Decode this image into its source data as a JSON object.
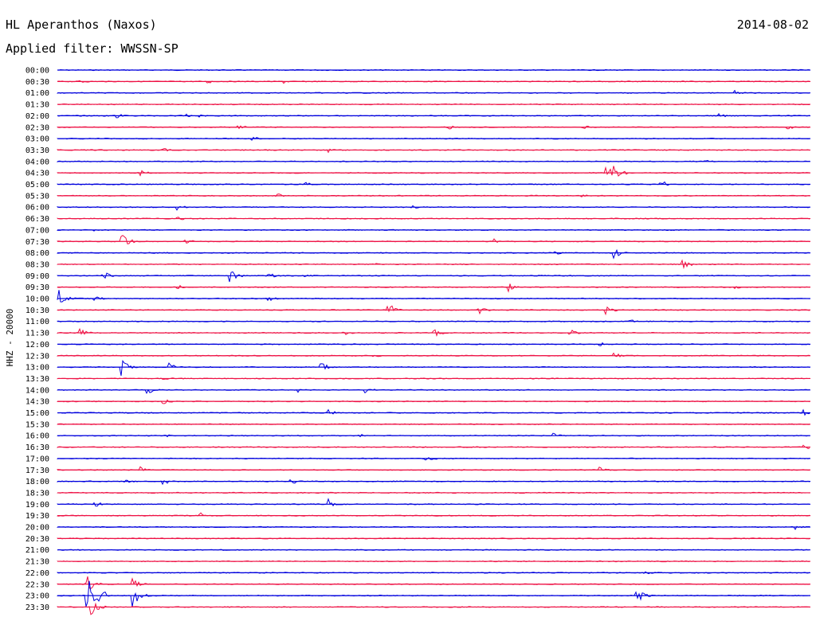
{
  "header": {
    "station": "HL Aperanthos (Naxos)",
    "date": "2014-08-02",
    "filter": "Applied filter: WWSSN-SP"
  },
  "chart_data": {
    "type": "helicorder",
    "channel_label": "HHZ - 20000",
    "colors": {
      "even": "#0000dd",
      "odd": "#ee1144"
    },
    "rows": [
      {
        "time": "00:00",
        "events": []
      },
      {
        "time": "00:30",
        "events": [
          {
            "x": 0.03,
            "amp": 3
          },
          {
            "x": 0.2,
            "amp": 3
          },
          {
            "x": 0.3,
            "amp": 3
          }
        ]
      },
      {
        "time": "01:00",
        "events": [
          {
            "x": 0.9,
            "amp": 3
          }
        ]
      },
      {
        "time": "01:30",
        "events": []
      },
      {
        "time": "02:00",
        "events": [
          {
            "x": 0.08,
            "amp": 3
          },
          {
            "x": 0.17,
            "amp": 3
          },
          {
            "x": 0.19,
            "amp": 2
          },
          {
            "x": 0.88,
            "amp": 3
          }
        ]
      },
      {
        "time": "02:30",
        "events": [
          {
            "x": 0.24,
            "amp": 4
          },
          {
            "x": 0.52,
            "amp": 3
          },
          {
            "x": 0.7,
            "amp": 3
          },
          {
            "x": 0.97,
            "amp": 3
          }
        ]
      },
      {
        "time": "03:00",
        "events": [
          {
            "x": 0.26,
            "amp": 3
          }
        ]
      },
      {
        "time": "03:30",
        "events": [
          {
            "x": 0.14,
            "amp": 3
          },
          {
            "x": 0.36,
            "amp": 3
          }
        ]
      },
      {
        "time": "04:00",
        "events": [
          {
            "x": 0.86,
            "amp": 3
          }
        ]
      },
      {
        "time": "04:30",
        "events": [
          {
            "x": 0.11,
            "amp": 4
          },
          {
            "x": 0.73,
            "amp": 9
          },
          {
            "x": 0.74,
            "amp": 15
          }
        ]
      },
      {
        "time": "05:00",
        "events": [
          {
            "x": 0.8,
            "amp": 7
          },
          {
            "x": 0.33,
            "amp": 3
          }
        ]
      },
      {
        "time": "05:30",
        "events": [
          {
            "x": 0.29,
            "amp": 4
          },
          {
            "x": 0.69,
            "amp": 5
          }
        ]
      },
      {
        "time": "06:00",
        "events": [
          {
            "x": 0.16,
            "amp": 4
          },
          {
            "x": 0.47,
            "amp": 3
          }
        ]
      },
      {
        "time": "06:30",
        "events": [
          {
            "x": 0.16,
            "amp": 3
          }
        ]
      },
      {
        "time": "07:00",
        "events": [
          {
            "x": 0.05,
            "amp": 3
          }
        ]
      },
      {
        "time": "07:30",
        "events": [
          {
            "x": 0.085,
            "amp": 13
          },
          {
            "x": 0.17,
            "amp": 4
          },
          {
            "x": 0.58,
            "amp": 4
          }
        ]
      },
      {
        "time": "08:00",
        "events": [
          {
            "x": 0.74,
            "amp": 7
          },
          {
            "x": 0.66,
            "amp": 3
          }
        ]
      },
      {
        "time": "08:30",
        "events": [
          {
            "x": 0.83,
            "amp": 7
          },
          {
            "x": 0.42,
            "amp": 3
          }
        ]
      },
      {
        "time": "09:00",
        "events": [
          {
            "x": 0.06,
            "amp": 9
          },
          {
            "x": 0.23,
            "amp": 9
          },
          {
            "x": 0.28,
            "amp": 4
          },
          {
            "x": 0.33,
            "amp": 3
          }
        ]
      },
      {
        "time": "09:30",
        "events": [
          {
            "x": 0.6,
            "amp": 6
          },
          {
            "x": 0.16,
            "amp": 3
          },
          {
            "x": 0.9,
            "amp": 3
          }
        ]
      },
      {
        "time": "10:00",
        "events": [
          {
            "x": 0.0,
            "amp": 15
          },
          {
            "x": 0.05,
            "amp": 4
          },
          {
            "x": 0.28,
            "amp": 4
          }
        ]
      },
      {
        "time": "10:30",
        "events": [
          {
            "x": 0.44,
            "amp": 9
          },
          {
            "x": 0.56,
            "amp": 5
          },
          {
            "x": 0.73,
            "amp": 6
          }
        ]
      },
      {
        "time": "11:00",
        "events": [
          {
            "x": 0.76,
            "amp": 3
          }
        ]
      },
      {
        "time": "11:30",
        "events": [
          {
            "x": 0.03,
            "amp": 6
          },
          {
            "x": 0.38,
            "amp": 4
          },
          {
            "x": 0.5,
            "amp": 6
          },
          {
            "x": 0.68,
            "amp": 6
          }
        ]
      },
      {
        "time": "12:00",
        "events": [
          {
            "x": 0.72,
            "amp": 3
          }
        ]
      },
      {
        "time": "12:30",
        "events": [
          {
            "x": 0.42,
            "amp": 3
          },
          {
            "x": 0.74,
            "amp": 4
          }
        ]
      },
      {
        "time": "13:00",
        "events": [
          {
            "x": 0.085,
            "amp": 11
          },
          {
            "x": 0.15,
            "amp": 6
          },
          {
            "x": 0.35,
            "amp": 9
          }
        ]
      },
      {
        "time": "13:30",
        "events": [
          {
            "x": 0.14,
            "amp": 3
          }
        ]
      },
      {
        "time": "14:00",
        "events": [
          {
            "x": 0.12,
            "amp": 5
          },
          {
            "x": 0.32,
            "amp": 3
          },
          {
            "x": 0.41,
            "amp": 4
          }
        ]
      },
      {
        "time": "14:30",
        "events": [
          {
            "x": 0.14,
            "amp": 4
          }
        ]
      },
      {
        "time": "15:00",
        "events": [
          {
            "x": 0.36,
            "amp": 5
          },
          {
            "x": 0.99,
            "amp": 6
          }
        ]
      },
      {
        "time": "15:30",
        "events": []
      },
      {
        "time": "16:00",
        "events": [
          {
            "x": 0.4,
            "amp": 4
          },
          {
            "x": 0.66,
            "amp": 4
          },
          {
            "x": 0.14,
            "amp": 3
          }
        ]
      },
      {
        "time": "16:30",
        "events": [
          {
            "x": 0.99,
            "amp": 5
          }
        ]
      },
      {
        "time": "17:00",
        "events": [
          {
            "x": 0.49,
            "amp": 5
          }
        ]
      },
      {
        "time": "17:30",
        "events": [
          {
            "x": 0.11,
            "amp": 5
          },
          {
            "x": 0.72,
            "amp": 4
          }
        ]
      },
      {
        "time": "18:00",
        "events": [
          {
            "x": 0.09,
            "amp": 5
          },
          {
            "x": 0.14,
            "amp": 5
          },
          {
            "x": 0.31,
            "amp": 5
          }
        ]
      },
      {
        "time": "18:30",
        "events": []
      },
      {
        "time": "19:00",
        "events": [
          {
            "x": 0.05,
            "amp": 4
          },
          {
            "x": 0.36,
            "amp": 7
          }
        ]
      },
      {
        "time": "19:30",
        "events": [
          {
            "x": 0.19,
            "amp": 4
          }
        ]
      },
      {
        "time": "20:00",
        "events": [
          {
            "x": 0.98,
            "amp": 3
          }
        ]
      },
      {
        "time": "20:30",
        "events": []
      },
      {
        "time": "21:00",
        "events": []
      },
      {
        "time": "21:30",
        "events": []
      },
      {
        "time": "22:00",
        "events": [
          {
            "x": 0.78,
            "amp": 3
          }
        ]
      },
      {
        "time": "22:30",
        "events": [
          {
            "x": 0.04,
            "amp": 10
          },
          {
            "x": 0.1,
            "amp": 8
          }
        ]
      },
      {
        "time": "23:00",
        "events": [
          {
            "x": 0.04,
            "amp": 28
          },
          {
            "x": 0.055,
            "amp": 14
          },
          {
            "x": 0.1,
            "amp": 16
          },
          {
            "x": 0.77,
            "amp": 10
          }
        ]
      },
      {
        "time": "23:30",
        "events": [
          {
            "x": 0.045,
            "amp": 12
          }
        ]
      }
    ]
  }
}
